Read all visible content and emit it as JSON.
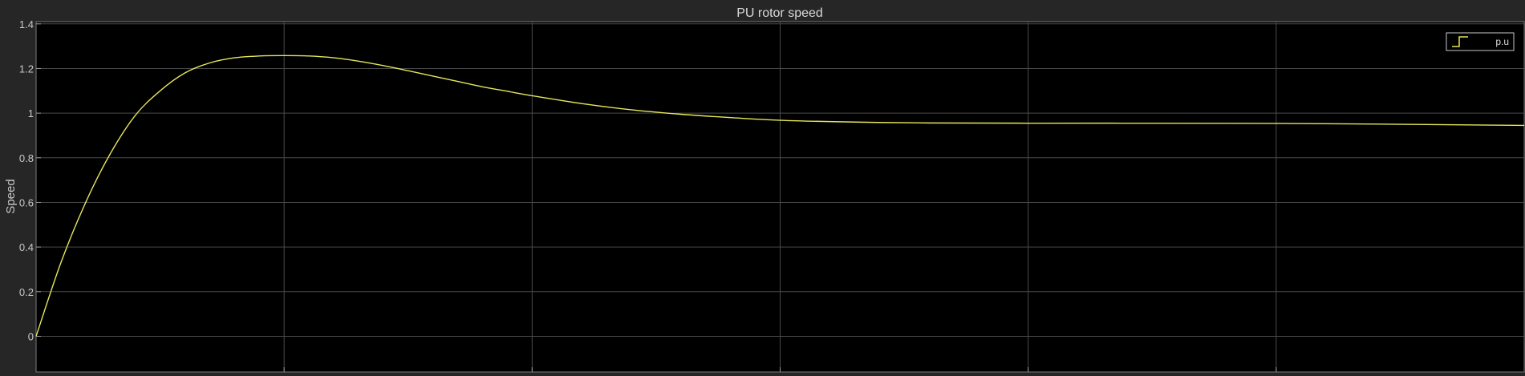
{
  "chart_data": {
    "type": "line",
    "title": "PU rotor speed",
    "xlabel": "",
    "ylabel": "Speed",
    "xlim": [
      0,
      6
    ],
    "ylim": [
      -0.16,
      1.41
    ],
    "y_ticks": [
      0,
      0.2,
      0.4,
      0.6,
      0.8,
      1,
      1.2,
      1.4
    ],
    "y_tick_labels": [
      "0",
      "0.2",
      "0.4",
      "0.6",
      "0.8",
      "1",
      "1.2",
      "1.4"
    ],
    "x_gridlines": [
      1,
      2,
      3,
      4,
      5
    ],
    "grid": true,
    "legend_position": "top-right",
    "series": [
      {
        "name": "p.u",
        "color": "#e6e65a",
        "x": [
          0,
          0.1,
          0.2,
          0.3,
          0.4,
          0.5,
          0.6,
          0.7,
          0.8,
          0.9,
          1.0,
          1.1,
          1.2,
          1.3,
          1.4,
          1.5,
          1.6,
          1.7,
          1.8,
          1.9,
          2.0,
          2.2,
          2.4,
          2.6,
          2.8,
          3.0,
          3.3,
          3.6,
          4.0,
          4.5,
          5.0,
          5.5,
          6.0
        ],
        "y": [
          0,
          0.33,
          0.6,
          0.82,
          0.99,
          1.1,
          1.18,
          1.225,
          1.248,
          1.256,
          1.258,
          1.256,
          1.248,
          1.233,
          1.213,
          1.19,
          1.166,
          1.142,
          1.118,
          1.098,
          1.078,
          1.043,
          1.015,
          0.995,
          0.98,
          0.968,
          0.96,
          0.956,
          0.955,
          0.955,
          0.954,
          0.95,
          0.945
        ]
      }
    ]
  }
}
